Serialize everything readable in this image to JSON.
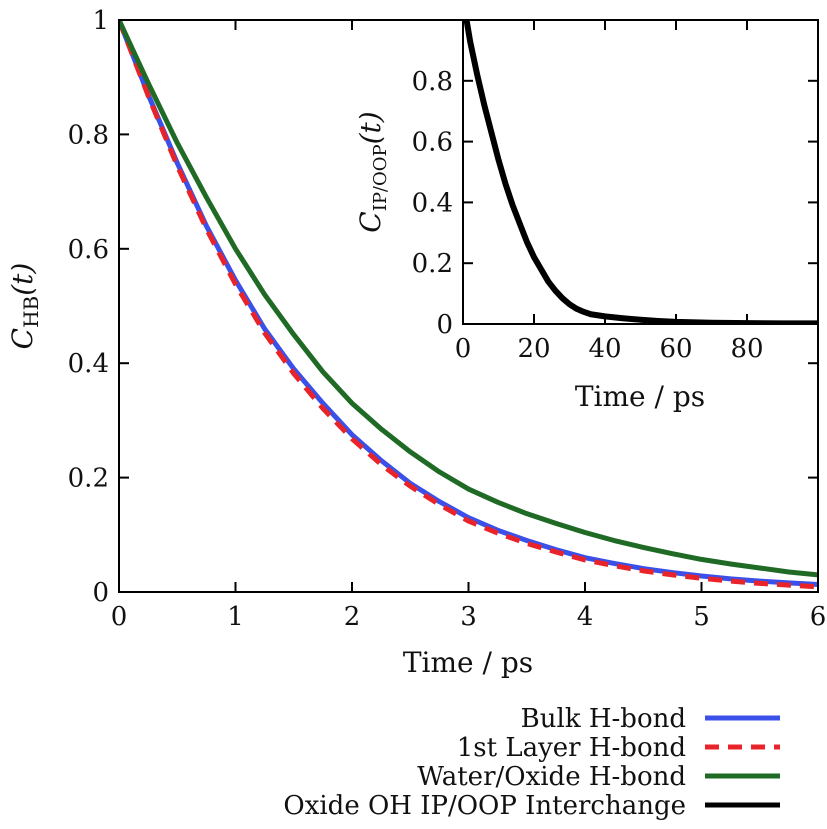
{
  "chart_data": [
    {
      "type": "line",
      "xlabel": "Time / ps",
      "ylabel": "C_HB(t)",
      "ylabel_main": "C",
      "ylabel_sub": "HB",
      "ylabel_arg": "(t)",
      "xlim": [
        0,
        6
      ],
      "ylim": [
        0,
        1
      ],
      "xticks": [
        0,
        1,
        2,
        3,
        4,
        5,
        6
      ],
      "xtick_labels": [
        "0",
        "1",
        "2",
        "3",
        "4",
        "5",
        "6"
      ],
      "yticks": [
        0,
        0.2,
        0.4,
        0.6,
        0.8,
        1
      ],
      "ytick_labels": [
        "0",
        "0.2",
        "0.4",
        "0.6",
        "0.8",
        "1"
      ],
      "series": [
        {
          "name": "Bulk H-bond",
          "color": "#3a50e8",
          "dash": "solid",
          "x": [
            0,
            0.25,
            0.5,
            0.75,
            1,
            1.25,
            1.5,
            1.75,
            2,
            2.25,
            2.5,
            2.75,
            3,
            3.25,
            3.5,
            3.75,
            4,
            4.25,
            4.5,
            4.75,
            5,
            5.25,
            5.5,
            5.75,
            6
          ],
          "y": [
            1.0,
            0.87,
            0.75,
            0.64,
            0.545,
            0.46,
            0.39,
            0.33,
            0.275,
            0.23,
            0.19,
            0.158,
            0.13,
            0.108,
            0.09,
            0.074,
            0.06,
            0.05,
            0.041,
            0.034,
            0.028,
            0.023,
            0.019,
            0.016,
            0.013
          ]
        },
        {
          "name": "1st Layer H-bond",
          "color": "#e8242a",
          "dash": "dashed",
          "x": [
            0,
            0.25,
            0.5,
            0.75,
            1,
            1.25,
            1.5,
            1.75,
            2,
            2.25,
            2.5,
            2.75,
            3,
            3.25,
            3.5,
            3.75,
            4,
            4.25,
            4.5,
            4.75,
            5,
            5.25,
            5.5,
            5.75,
            6
          ],
          "y": [
            1.0,
            0.868,
            0.745,
            0.635,
            0.538,
            0.453,
            0.382,
            0.321,
            0.268,
            0.223,
            0.185,
            0.153,
            0.124,
            0.103,
            0.085,
            0.07,
            0.056,
            0.046,
            0.037,
            0.03,
            0.024,
            0.019,
            0.015,
            0.012,
            0.009
          ]
        },
        {
          "name": "Water/Oxide H-bond",
          "color": "#1f6a24",
          "dash": "solid",
          "x": [
            0,
            0.25,
            0.5,
            0.75,
            1,
            1.25,
            1.5,
            1.75,
            2,
            2.25,
            2.5,
            2.75,
            3,
            3.25,
            3.5,
            3.75,
            4,
            4.25,
            4.5,
            4.75,
            5,
            5.25,
            5.5,
            5.75,
            6
          ],
          "y": [
            1.0,
            0.89,
            0.785,
            0.69,
            0.6,
            0.52,
            0.45,
            0.385,
            0.33,
            0.285,
            0.245,
            0.21,
            0.18,
            0.157,
            0.137,
            0.12,
            0.104,
            0.09,
            0.078,
            0.067,
            0.057,
            0.049,
            0.042,
            0.035,
            0.03
          ]
        }
      ],
      "legend": [
        {
          "label": "Bulk H-bond",
          "color": "#3a50e8",
          "dash": "solid"
        },
        {
          "label": "1st Layer H-bond",
          "color": "#e8242a",
          "dash": "dashed"
        },
        {
          "label": "Water/Oxide H-bond",
          "color": "#1f6a24",
          "dash": "solid"
        },
        {
          "label": "Oxide OH IP/OOP Interchange",
          "color": "#000000",
          "dash": "solid"
        }
      ],
      "legend_position": "bottom-right"
    },
    {
      "type": "line",
      "xlabel": "Time / ps",
      "ylabel": "C_IP/OOP(t)",
      "ylabel_main": "C",
      "ylabel_sub": "IP/OOP",
      "ylabel_arg": "(t)",
      "xlim": [
        0,
        100
      ],
      "ylim": [
        0,
        1
      ],
      "xticks": [
        0,
        20,
        40,
        60,
        80
      ],
      "xtick_labels": [
        "0",
        "20",
        "40",
        "60",
        "80"
      ],
      "yticks": [
        0,
        0.2,
        0.4,
        0.6,
        0.8
      ],
      "ytick_labels": [
        "0",
        "0.2",
        "0.4",
        "0.6",
        "0.8"
      ],
      "series": [
        {
          "name": "Oxide OH IP/OOP Interchange",
          "color": "#000000",
          "dash": "solid",
          "x": [
            1,
            2,
            4,
            6,
            8,
            10,
            12,
            14,
            16,
            18,
            20,
            22,
            24,
            26,
            28,
            30,
            32,
            34,
            36,
            40,
            45,
            50,
            55,
            60,
            70,
            80,
            90,
            100
          ],
          "y": [
            1.0,
            0.93,
            0.82,
            0.72,
            0.63,
            0.54,
            0.46,
            0.39,
            0.33,
            0.27,
            0.22,
            0.18,
            0.14,
            0.11,
            0.085,
            0.065,
            0.05,
            0.04,
            0.032,
            0.025,
            0.019,
            0.014,
            0.01,
            0.007,
            0.004,
            0.003,
            0.002,
            0.002
          ]
        }
      ]
    }
  ]
}
